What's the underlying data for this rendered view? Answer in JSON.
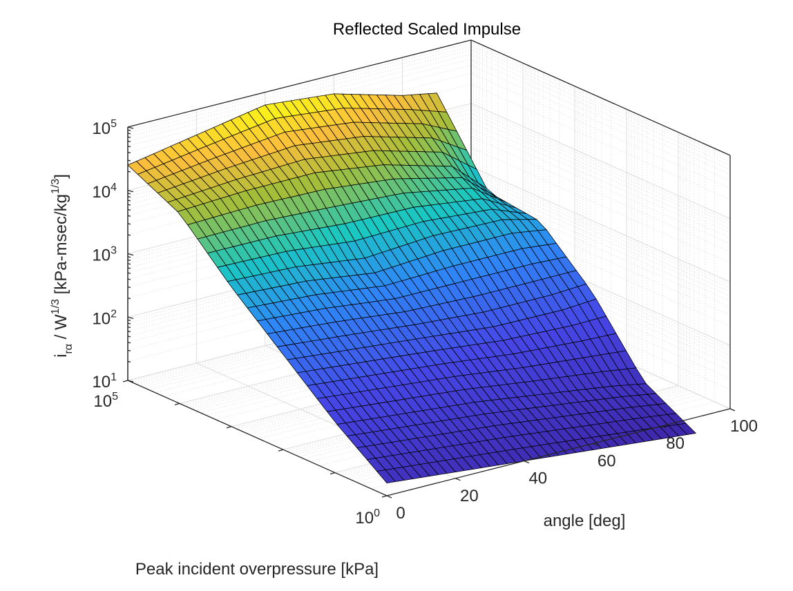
{
  "chart_data": {
    "type": "surface",
    "title": "Reflected Scaled Impulse",
    "xlabel": "angle [deg]",
    "ylabel": "Peak incident overpressure [kPa]",
    "zlabel": {
      "i": "i",
      "sub_r": "r",
      "sub_alpha": "α",
      "slash_w": " / W",
      "exp1": "1/3",
      "unit": " [kPa-msec/kg",
      "exp2": "1/3",
      "close": "]"
    },
    "x_ticks": [
      "0",
      "20",
      "40",
      "60",
      "80",
      "100"
    ],
    "x_range": [
      0,
      100
    ],
    "y_ticks": [
      {
        "base": "10",
        "exp": "0"
      },
      {
        "base": "10",
        "exp": "5"
      }
    ],
    "y_range_log10": [
      0,
      5
    ],
    "z_ticks": [
      {
        "base": "10",
        "exp": "1"
      },
      {
        "base": "10",
        "exp": "2"
      },
      {
        "base": "10",
        "exp": "3"
      },
      {
        "base": "10",
        "exp": "4"
      },
      {
        "base": "10",
        "exp": "5"
      }
    ],
    "z_range_log10": [
      1,
      5
    ],
    "z_scale": "log",
    "y_scale": "log",
    "grid": true,
    "colormap": "parula",
    "colors": {
      "low": "#3e26a8",
      "mid_low": "#2e87f7",
      "mid": "#1ac7c2",
      "mid_high": "#a5be3a",
      "high": "#f9fb15",
      "edge": "#000000"
    },
    "surface_samples": {
      "angle_deg": [
        0,
        20,
        40,
        60,
        80,
        90
      ],
      "peak_overpressure_kPa": [
        1,
        10,
        100,
        1000,
        10000,
        100000
      ],
      "log10_impulse": [
        [
          1.2,
          1.1,
          1.0,
          0.9,
          0.8,
          0.75
        ],
        [
          1.8,
          1.7,
          1.6,
          1.45,
          1.3,
          1.2
        ],
        [
          2.5,
          2.4,
          2.3,
          2.2,
          2.2,
          2.25
        ],
        [
          3.2,
          3.15,
          3.0,
          3.1,
          3.1,
          3.0
        ],
        [
          4.0,
          4.05,
          4.05,
          3.9,
          3.6,
          3.1
        ],
        [
          4.4,
          4.6,
          4.8,
          4.7,
          4.4,
          4.3
        ]
      ]
    }
  }
}
